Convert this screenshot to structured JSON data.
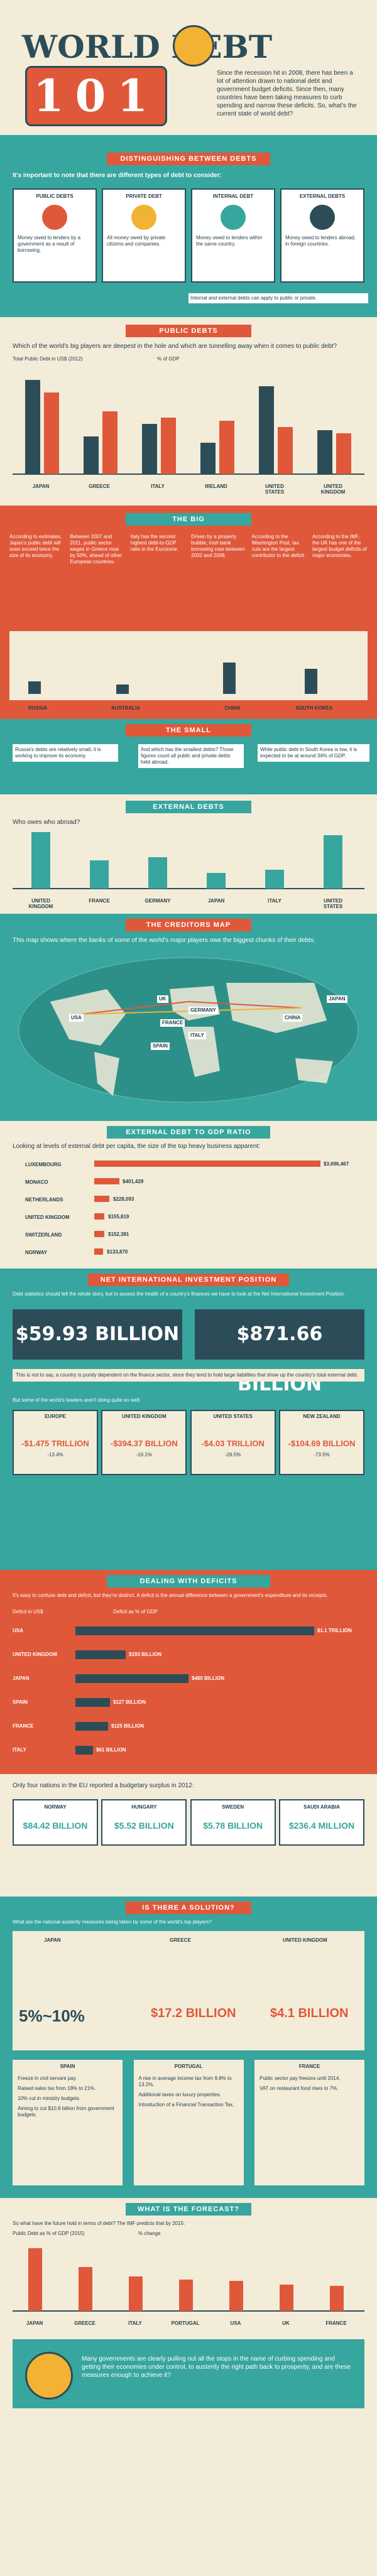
{
  "header": {
    "title_left": "WORLD DEBT",
    "title_number": "101",
    "intro": "Since the recession hit in 2008, there has been a lot of attention drawn to national debt and government budget deficits. Since then, many countries have been taking measures to curb spending and narrow these deficits. So, what's the current state of world debt?"
  },
  "distinguishing": {
    "banner": "DISTINGUISHING BETWEEN DEBTS",
    "subtitle": "It's important to note that there are different types of debt to consider:",
    "types": [
      {
        "name": "PUBLIC DEBTS",
        "desc": "Money owed to lenders by a government as a result of borrowing."
      },
      {
        "name": "PRIVATE DEBT",
        "desc": "All money owed by private citizens and companies."
      },
      {
        "name": "INTERNAL DEBT",
        "desc": "Money owed to lenders within the same country."
      },
      {
        "name": "EXTERNAL DEBTS",
        "desc": "Money owed to lenders abroad, in foreign countries."
      }
    ],
    "note": "Internal and external debts can apply to public or private."
  },
  "public_debts": {
    "banner": "PUBLIC DEBTS",
    "question": "Which of the world's big players are deepest in the hole and which are tunnelling away when it comes to public debt?",
    "legend": [
      "Total Public Debt in US$ (2012)",
      "% of GDP"
    ],
    "countries": [
      "JAPAN",
      "GREECE",
      "ITALY",
      "IRELAND",
      "UNITED STATES",
      "UNITED KINGDOM"
    ]
  },
  "big": {
    "banner": "THE BIG",
    "notes": [
      "According to estimates, Japan's public debt will soon exceed twice the size of its economy.",
      "Between 2007 and 2011, public sector wages in Greece rose by 50%, ahead of other European countries.",
      "Italy has the second highest debt-to-GDP ratio in the Eurozone.",
      "Driven by a property bubble, Irish bank borrowing rose between 2002 and 2008.",
      "According to the Washington Post, tax cuts are the largest contributor to the deficit.",
      "According to the IMF, the UK has one of the largest budget deficits of major economies."
    ],
    "countries": [
      "RUSSIA",
      "AUSTRALIA",
      "CHINA",
      "SOUTH KOREA"
    ]
  },
  "small": {
    "banner": "THE SMALL",
    "notes": [
      "Russia's debts are relatively small; it is working to improve its economy.",
      "And which has the smallest debts? Those figures count all public and private debts held abroad.",
      "While public debt in South Korea is low, it is expected to be at around 34% of GDP."
    ]
  },
  "external": {
    "banner": "EXTERNAL DEBTS",
    "question": "Who owes who abroad?",
    "countries": [
      "UNITED KINGDOM",
      "FRANCE",
      "GERMANY",
      "JAPAN",
      "ITALY",
      "UNITED STATES"
    ]
  },
  "creditors": {
    "banner": "THE CREDITORS MAP",
    "subtitle": "This map shows where the banks of some of the world's major players owe the biggest chunks of their debts:",
    "labels": [
      "UK",
      "GERMANY",
      "FRANCE",
      "ITALY",
      "SPAIN",
      "USA",
      "CHINA",
      "JAPAN"
    ]
  },
  "external_gdp": {
    "banner": "EXTERNAL DEBT TO GDP RATIO",
    "subtitle": "Looking at levels of external debt per capita, the size of the top heavy business apparent:",
    "rows": [
      {
        "country": "LUXEMBOURG",
        "value": "$3,696,467"
      },
      {
        "country": "MONACO",
        "value": "$401,429"
      },
      {
        "country": "NETHERLANDS",
        "value": "$228,093"
      },
      {
        "country": "UNITED KINGDOM",
        "value": "$155,819"
      },
      {
        "country": "SWITZERLAND",
        "value": "$152,381"
      },
      {
        "country": "NORWAY",
        "value": "$133,870"
      }
    ]
  },
  "niip": {
    "banner": "NET INTERNATIONAL INVESTMENT POSITION",
    "intro": "Debt statistics should tell the whole story, but to assess the health of a country's finances we have to look at the Net International Investment Position.",
    "left_value": "$59.93 BILLION",
    "right_value": "$871.66 BILLION",
    "note": "This is not to say, a country is purely dependent on the finance sector, since they tend to hold large liabilities that show up the country's total external debt.",
    "subtitle2": "But some of the world's leaders aren't doing quite so well:",
    "regions": [
      {
        "name": "EUROPE",
        "value": "-$1.475 TRILLION",
        "pct": "-13.4%"
      },
      {
        "name": "UNITED KINGDOM",
        "value": "-$394.37 BILLION",
        "pct": "-16.1%"
      },
      {
        "name": "UNITED STATES",
        "value": "-$4.03 TRILLION",
        "pct": "-26.5%"
      },
      {
        "name": "NEW ZEALAND",
        "value": "-$104.69 BILLION",
        "pct": "-73.5%"
      }
    ]
  },
  "deficits": {
    "banner": "DEALING WITH DEFICITS",
    "intro": "It's easy to confuse debt and deficit, but they're distinct. A deficit is the annual difference between a government's expenditure and its receipts.",
    "legend": [
      "Deficit in US$",
      "Deficit as % of GDP"
    ],
    "rows": [
      {
        "country": "USA",
        "value": "$1.1 TRILLION"
      },
      {
        "country": "UNITED KINGDOM",
        "value": "$193 BILLION"
      },
      {
        "country": "JAPAN",
        "value": "$480 BILLION"
      },
      {
        "country": "SPAIN",
        "value": "$127 BILLION"
      },
      {
        "country": "FRANCE",
        "value": "$125 BILLION"
      },
      {
        "country": "ITALY",
        "value": "$61 BILLION"
      }
    ],
    "surplus_intro": "Only four nations in the EU reported a budgetary surplus in 2012:",
    "surplus": [
      {
        "name": "NORWAY",
        "value": "$84.42 BILLION"
      },
      {
        "name": "HUNGARY",
        "value": "$5.52 BILLION"
      },
      {
        "name": "SWEDEN",
        "value": "$5.78 BILLION"
      },
      {
        "name": "SAUDI ARABIA",
        "value": "$236.4 MILLION"
      }
    ]
  },
  "solution": {
    "banner": "IS THERE A SOLUTION?",
    "question": "What are the national austerity measures being taken by some of the world's top players?",
    "items": [
      {
        "name": "JAPAN",
        "value": "5%~10%"
      },
      {
        "name": "GREECE",
        "value": "$17.2 BILLION"
      },
      {
        "name": "UNITED KINGDOM",
        "value": "$4.1 BILLION"
      }
    ],
    "lists": [
      {
        "name": "SPAIN",
        "points": [
          "Freeze in civil servant pay.",
          "Raised sales tax from 18% to 21%.",
          "10% cut in ministry budgets.",
          "Aiming to cut $10.9 billion from government budgets."
        ]
      },
      {
        "name": "PORTUGAL",
        "points": [
          "A rise in average income tax from 9.8% to 13.2%.",
          "Additional taxes on luxury properties.",
          "Introduction of a Financial Transaction Tax."
        ]
      },
      {
        "name": "FRANCE",
        "points": [
          "Public sector pay freezes until 2014.",
          "VAT on restaurant food rises to 7%."
        ]
      }
    ]
  },
  "forecast": {
    "banner": "WHAT IS THE FORECAST?",
    "question": "So what have the future hold in terms of debt? The IMF predicts that by 2015:",
    "legend": [
      "Public Debt as % of GDP (2015)",
      "% change"
    ],
    "countries": [
      "JAPAN",
      "GREECE",
      "ITALY",
      "PORTUGAL",
      "USA",
      "UK",
      "FRANCE"
    ],
    "closing": "Many governments are clearly pulling out all the stops in the name of curbing spending and getting their economies under control, to austerity the right path back to prosperity, and are these measures enough to achieve it?"
  },
  "colors": {
    "teal": "#37a69e",
    "orange": "#e0583a",
    "navy": "#2c4d58",
    "cream": "#f3ecd9",
    "yellow": "#f2b233"
  }
}
